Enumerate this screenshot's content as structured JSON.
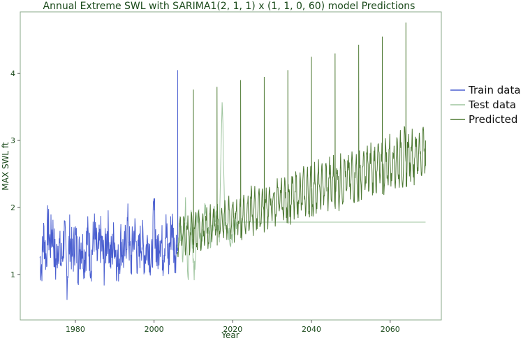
{
  "chart_data": {
    "type": "line",
    "title": "Annual Extreme SWL with SARIMA1(2, 1, 1) x (1, 1, 0, 60) model Predictions",
    "xlabel": "Year",
    "ylabel": "MAX SWL ft",
    "xlim": [
      1966,
      2073
    ],
    "ylim": [
      0.32,
      4.92
    ],
    "xticks": [
      1980,
      2000,
      2020,
      2040,
      2060
    ],
    "yticks": [
      1,
      2,
      3,
      4
    ],
    "grid": false,
    "legend_position": "right",
    "legend": [
      "Train data",
      "Test data",
      "Predicted"
    ],
    "series": [
      {
        "name": "Train data",
        "color": "#4a5fd0",
        "x_start": 1971,
        "x_end": 2006,
        "points": [
          [
            1971,
            1.15
          ],
          [
            1971.4,
            0.92
          ],
          [
            1972,
            1.8
          ],
          [
            1972.6,
            1.1
          ],
          [
            1973,
            2.03
          ],
          [
            1973.6,
            1.5
          ],
          [
            1974.2,
            1.95
          ],
          [
            1975,
            0.9
          ],
          [
            1975.7,
            1.65
          ],
          [
            1976.4,
            0.95
          ],
          [
            1977.2,
            1.8
          ],
          [
            1977.9,
            0.58
          ],
          [
            1978.6,
            1.75
          ],
          [
            1979.3,
            1.1
          ],
          [
            1980,
            1.72
          ],
          [
            1980.7,
            1.0
          ],
          [
            1981.5,
            1.6
          ],
          [
            1982.3,
            1.15
          ],
          [
            1983.1,
            1.72
          ],
          [
            1984,
            1.05
          ],
          [
            1984.8,
            1.85
          ],
          [
            1985.6,
            1.1
          ],
          [
            1986.5,
            1.65
          ],
          [
            1987.3,
            0.98
          ],
          [
            1988.2,
            1.95
          ],
          [
            1989,
            1.1
          ],
          [
            1989.9,
            1.7
          ],
          [
            1990.8,
            0.88
          ],
          [
            1991.6,
            1.6
          ],
          [
            1992.4,
            1.15
          ],
          [
            1993.3,
            2.05
          ],
          [
            1994.1,
            1.0
          ],
          [
            1995,
            1.9
          ],
          [
            1995.9,
            1.05
          ],
          [
            1996.8,
            1.7
          ],
          [
            1997.6,
            1.2
          ],
          [
            1998.5,
            1.65
          ],
          [
            1999.4,
            0.95
          ],
          [
            2000,
            2.45
          ],
          [
            2000.8,
            1.1
          ],
          [
            2001.5,
            1.85
          ],
          [
            2002.3,
            1.2
          ],
          [
            2003,
            1.95
          ],
          [
            2003.7,
            1.0
          ],
          [
            2004.5,
            2.15
          ],
          [
            2005.2,
            1.3
          ],
          [
            2005.8,
            1.5
          ],
          [
            2006,
            4.05
          ],
          [
            2006,
            1.4
          ]
        ]
      },
      {
        "name": "Test data",
        "color": "#9fc59f",
        "x_start": 2006,
        "x_end": 2069,
        "points": [
          [
            2006,
            1.4
          ],
          [
            2006.6,
            1.8
          ],
          [
            2007.3,
            1.25
          ],
          [
            2008,
            2.05
          ],
          [
            2008.6,
            0.92
          ],
          [
            2009.3,
            1.9
          ],
          [
            2010.2,
            0.95
          ],
          [
            2011,
            2.0
          ],
          [
            2012,
            1.5
          ],
          [
            2013,
            1.95
          ],
          [
            2014.2,
            1.45
          ],
          [
            2015.4,
            1.9
          ],
          [
            2016.6,
            1.55
          ],
          [
            2017.3,
            3.57
          ],
          [
            2018,
            1.85
          ],
          [
            2019.5,
            1.55
          ],
          [
            2021,
            1.78
          ],
          [
            2030,
            1.78
          ],
          [
            2040,
            1.78
          ],
          [
            2050,
            1.78
          ],
          [
            2060,
            1.78
          ],
          [
            2069,
            1.78
          ]
        ]
      },
      {
        "name": "Predicted",
        "color": "#4e7a34",
        "x_start": 2006,
        "x_end": 2069,
        "spike_years": [
          2010,
          2016,
          2022,
          2028,
          2034,
          2040,
          2046,
          2052,
          2058,
          2064
        ],
        "spike_values": [
          3.76,
          3.8,
          3.9,
          3.95,
          4.05,
          4.25,
          4.3,
          4.43,
          4.55,
          4.76
        ],
        "trend_start_value": 1.55,
        "trend_end_value": 2.85,
        "amplitude_start": 0.3,
        "amplitude_end": 0.45,
        "end_value": 3.0
      }
    ]
  }
}
